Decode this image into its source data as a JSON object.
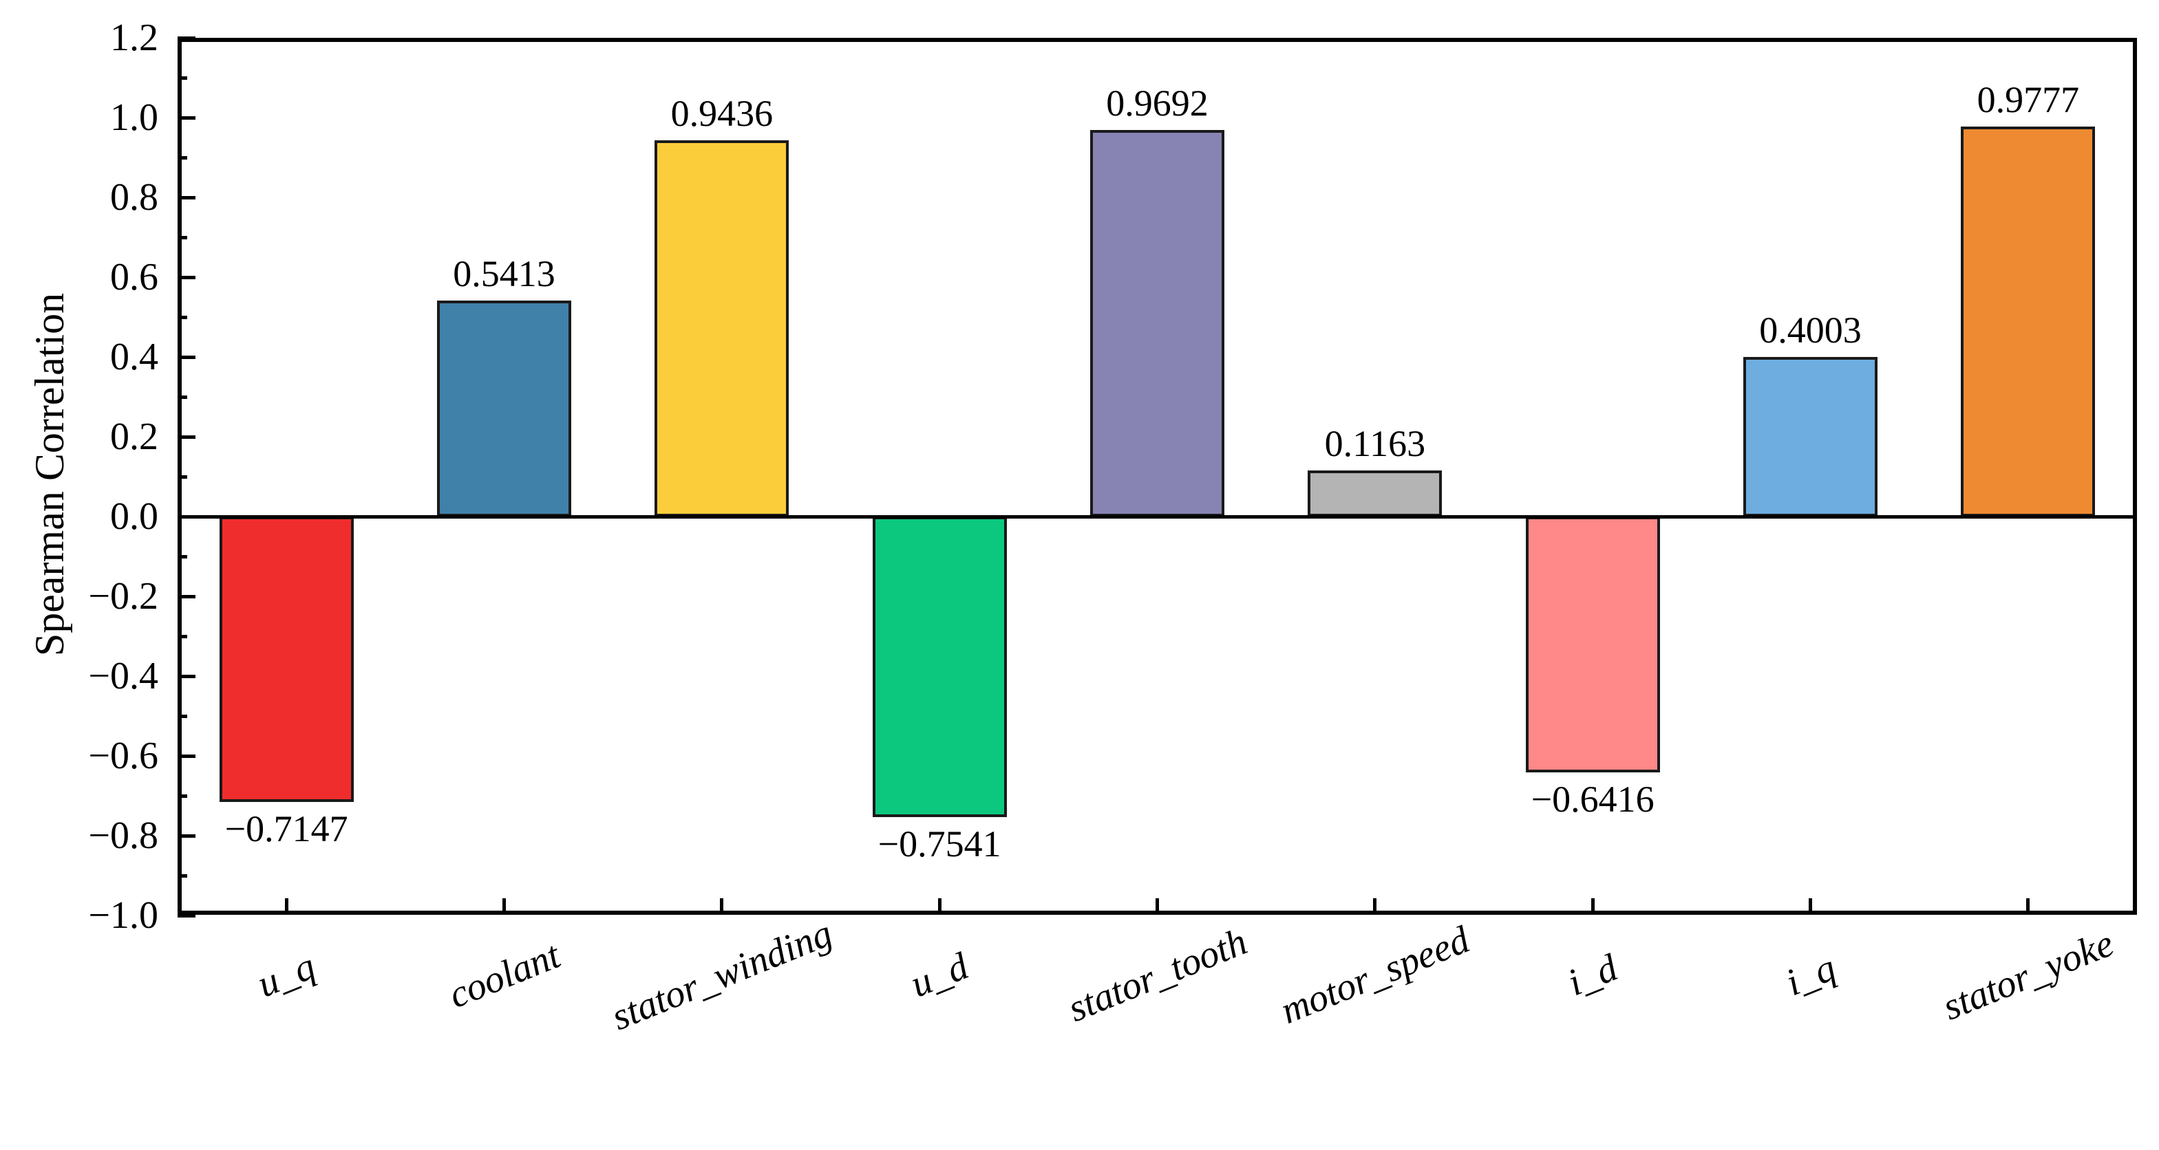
{
  "figure": {
    "background": "#ffffff",
    "text_color": "#000000"
  },
  "axes": {
    "ylabel": "Spearman Correlation",
    "xlabel": "",
    "title": "",
    "ylim": [
      -1.0,
      1.2
    ],
    "y_major_ticks": [
      {
        "value": 1.2,
        "label": "1.2"
      },
      {
        "value": 1.0,
        "label": "1.0"
      },
      {
        "value": 0.8,
        "label": "0.8"
      },
      {
        "value": 0.6,
        "label": "0.6"
      },
      {
        "value": 0.4,
        "label": "0.4"
      },
      {
        "value": 0.2,
        "label": "0.2"
      },
      {
        "value": 0.0,
        "label": "0.0"
      },
      {
        "value": -0.2,
        "label": "−0.2"
      },
      {
        "value": -0.4,
        "label": "−0.4"
      },
      {
        "value": -0.6,
        "label": "−0.6"
      },
      {
        "value": -0.8,
        "label": "−0.8"
      },
      {
        "value": -1.0,
        "label": "−1.0"
      }
    ],
    "y_minor_tick_values": [
      1.1,
      0.9,
      0.7,
      0.5,
      0.3,
      0.1,
      -0.1,
      -0.3,
      -0.5,
      -0.7,
      -0.9
    ],
    "grid": false,
    "legend": null
  },
  "chart_data": {
    "type": "bar",
    "title": "",
    "xlabel": "",
    "ylabel": "Spearman Correlation",
    "ylim": [
      -1.0,
      1.2
    ],
    "grid": false,
    "legend_position": "none",
    "categories": [
      "u_q",
      "coolant",
      "stator_winding",
      "u_d",
      "stator_tooth",
      "motor_speed",
      "i_d",
      "i_q",
      "stator_yoke"
    ],
    "values": [
      -0.7147,
      0.5413,
      0.9436,
      -0.7541,
      0.9692,
      0.1163,
      -0.6416,
      0.4003,
      0.9777
    ],
    "value_labels": [
      "−0.7147",
      "0.5413",
      "0.9436",
      "−0.7541",
      "0.9692",
      "0.1163",
      "−0.6416",
      "0.4003",
      "0.9777"
    ],
    "bar_colors": [
      "#F02D2D",
      "#4081AA",
      "#FCCD3A",
      "#0BC87E",
      "#8784B4",
      "#B4B4B4",
      "#FF8888",
      "#6DADE0",
      "#EE8A31"
    ],
    "bar_edge_color": "#1A1A1A",
    "zero_line_color": "#000000"
  }
}
